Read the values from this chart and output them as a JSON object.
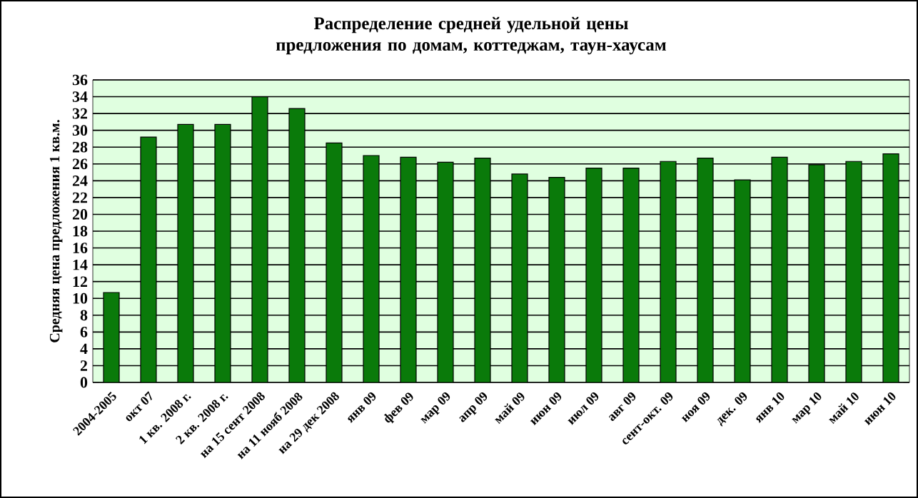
{
  "chart_data": {
    "type": "bar",
    "title": "Распределение средней удельной цены предложения по домам, коттеджам, таун-хаусам",
    "ylabel": "Средняя цена предложения 1 кв.м.",
    "categories": [
      "2004-2005",
      "окт 07",
      "1 кв. 2008 г.",
      "2 кв. 2008 г.",
      "на 15 сент 2008",
      "на 11 нояб 2008",
      "на 29 дек 2008",
      "янв 09",
      "фев 09",
      "мар 09",
      "апр 09",
      "май 09",
      "июн 09",
      "июл 09",
      "авг 09",
      "сент-окт. 09",
      "ноя 09",
      "дек. 09",
      "янв 10",
      "мар 10",
      "май 10",
      "июн 10"
    ],
    "values": [
      10.7,
      29.2,
      30.7,
      30.7,
      34,
      32.6,
      28.5,
      27,
      26.8,
      26.2,
      26.7,
      24.8,
      24.4,
      25.5,
      25.5,
      26.3,
      26.7,
      24.1,
      26.8,
      25.9,
      26.3,
      27.2
    ],
    "color": "#0a7a0a",
    "ylim": [
      0,
      36
    ],
    "yticks": [
      0,
      2,
      4,
      6,
      8,
      10,
      12,
      14,
      16,
      18,
      20,
      22,
      24,
      26,
      28,
      30,
      32,
      34,
      36
    ],
    "grid": "y"
  }
}
